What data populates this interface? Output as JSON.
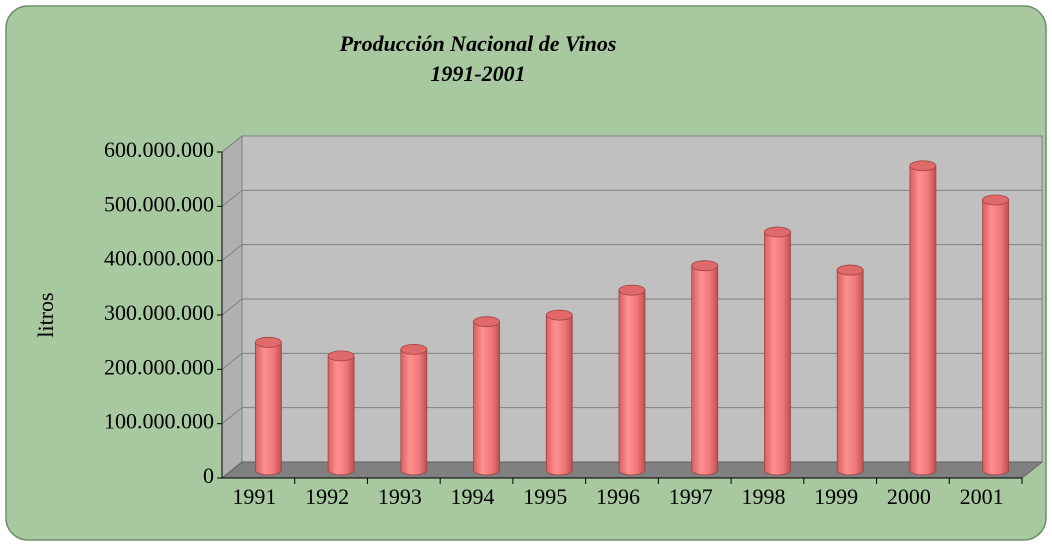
{
  "chart_data": {
    "type": "bar3d-cylinder",
    "title": "Producción Nacional de Vinos",
    "subtitle": "1991-2001",
    "y_label": "litros",
    "categories": [
      "1991",
      "1992",
      "1993",
      "1994",
      "1995",
      "1996",
      "1997",
      "1998",
      "1999",
      "2000",
      "2001"
    ],
    "values": [
      235000000,
      210000000,
      222000000,
      273000000,
      285000000,
      331000000,
      376000000,
      438000000,
      368000000,
      560000000,
      497000000
    ],
    "color": "#f08080",
    "ylim": [
      0,
      600000000
    ],
    "yticks": [
      0,
      {
        "value": 100000000,
        "label": "100.000.000"
      },
      {
        "value": 200000000,
        "label": "200.000.000"
      },
      {
        "value": 300000000,
        "label": "300.000.000"
      },
      {
        "value": 400000000,
        "label": "400.000.000"
      },
      {
        "value": 500000000,
        "label": "500.000.000"
      },
      {
        "value": 600000000,
        "label": "600.000.000"
      }
    ],
    "grid": true
  }
}
